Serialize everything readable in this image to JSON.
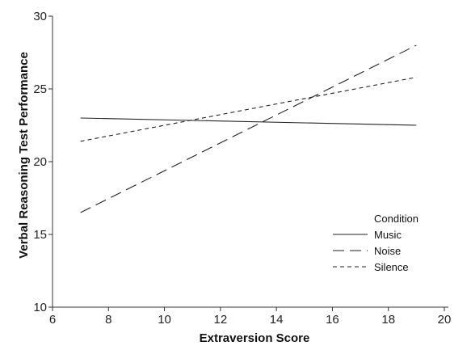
{
  "chart_data": {
    "type": "line",
    "title": "",
    "xlabel": "Extraversion Score",
    "ylabel": "Verbal Reasoning Test Performance",
    "xlim": [
      6,
      20
    ],
    "ylim": [
      10,
      30
    ],
    "x_ticks": [
      6,
      8,
      10,
      12,
      14,
      16,
      18,
      20
    ],
    "y_ticks": [
      10,
      15,
      20,
      25,
      30
    ],
    "grid": false,
    "legend": {
      "title": "Condition",
      "placement": "bottom-right"
    },
    "series": [
      {
        "name": "Music",
        "dash": "solid",
        "x": [
          7,
          19
        ],
        "y": [
          23.0,
          22.5
        ]
      },
      {
        "name": "Noise",
        "dash": "long-dash",
        "x": [
          7,
          19
        ],
        "y": [
          16.5,
          28.0
        ]
      },
      {
        "name": "Silence",
        "dash": "short-dash",
        "x": [
          7,
          19
        ],
        "y": [
          21.4,
          25.8
        ]
      }
    ]
  }
}
